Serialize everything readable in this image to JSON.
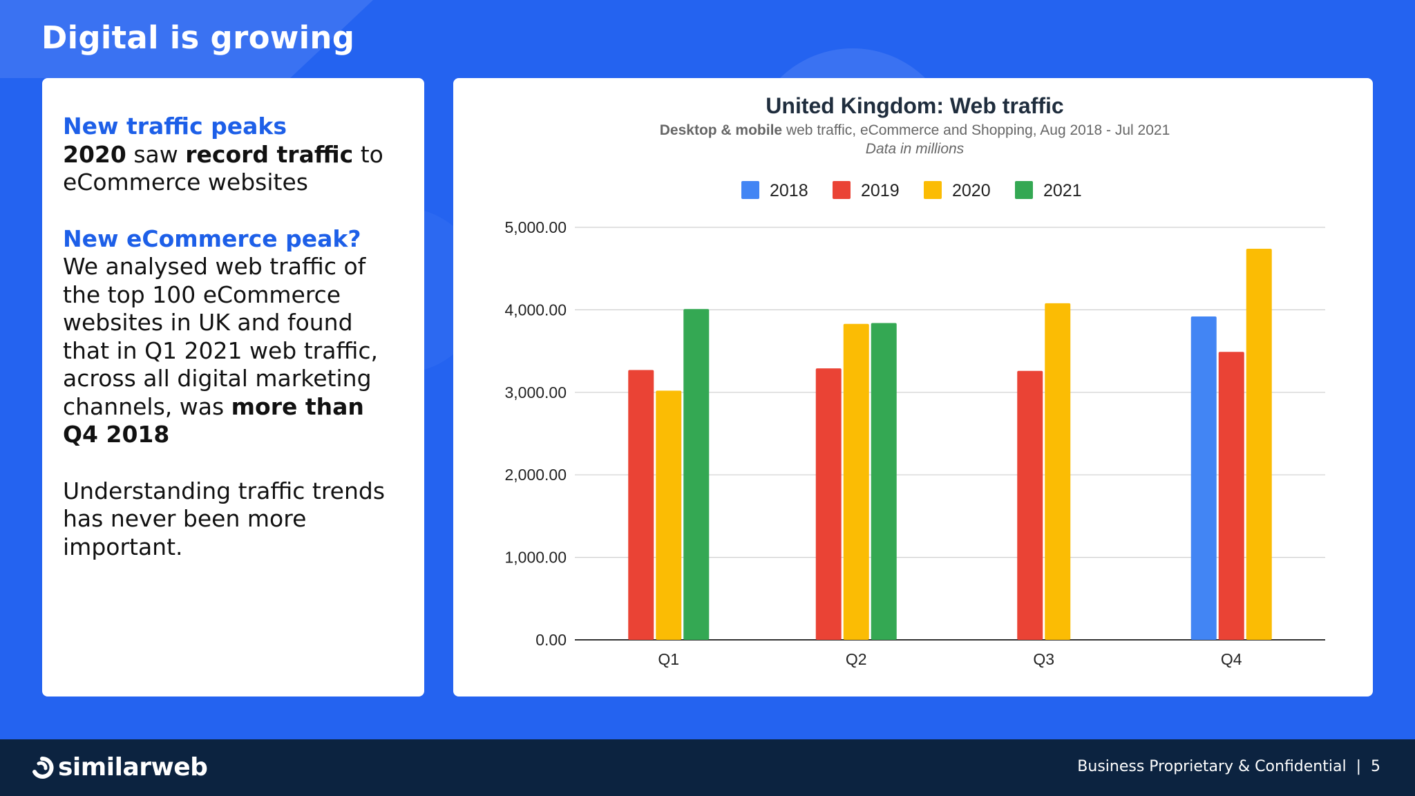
{
  "slide": {
    "title": "Digital is growing",
    "colors": {
      "background": "#2463f0",
      "accent_text": "#1d5fe8",
      "footer": "#0c2340"
    }
  },
  "text_panel": {
    "heading1": "New traffic peaks",
    "p1_bold1": "2020",
    "p1_text1": " saw ",
    "p1_bold2": "record traffic",
    "p1_text2": " to eCommerce websites",
    "heading2": "New eCommerce peak?",
    "p2_text": "We analysed web traffic of the top 100 eCommerce websites in UK and found that in Q1 2021 web traffic, across all digital marketing channels, was ",
    "p2_bold": "more than Q4 2018",
    "p3_text": "Understanding traffic trends has never been more important."
  },
  "footer": {
    "brand": "similarweb",
    "brand_icon": "similarweb-logo-icon",
    "confidential": "Business Proprietary & Confidential",
    "separator": "|",
    "page_number": "5"
  },
  "chart_data": {
    "type": "bar",
    "title": "United Kingdom: Web traffic",
    "subtitle_bold": "Desktop & mobile",
    "subtitle_rest": " web traffic, eCommerce and Shopping, Aug 2018 - Jul 2021",
    "note": "Data in millions",
    "categories": [
      "Q1",
      "Q2",
      "Q3",
      "Q4"
    ],
    "series": [
      {
        "name": "2018",
        "color": "#4285f4",
        "values": [
          null,
          null,
          null,
          3920
        ]
      },
      {
        "name": "2019",
        "color": "#ea4335",
        "values": [
          3270,
          3290,
          3260,
          3490
        ]
      },
      {
        "name": "2020",
        "color": "#fbbc04",
        "values": [
          3020,
          3830,
          4080,
          4740
        ]
      },
      {
        "name": "2021",
        "color": "#34a853",
        "values": [
          4010,
          3840,
          null,
          null
        ]
      }
    ],
    "yticks": [
      "0.00",
      "1,000.00",
      "2,000.00",
      "3,000.00",
      "4,000.00",
      "5,000.00"
    ],
    "ylim": [
      0,
      5000
    ],
    "xlabel": "",
    "ylabel": "",
    "grid": true,
    "legend_position": "top"
  }
}
